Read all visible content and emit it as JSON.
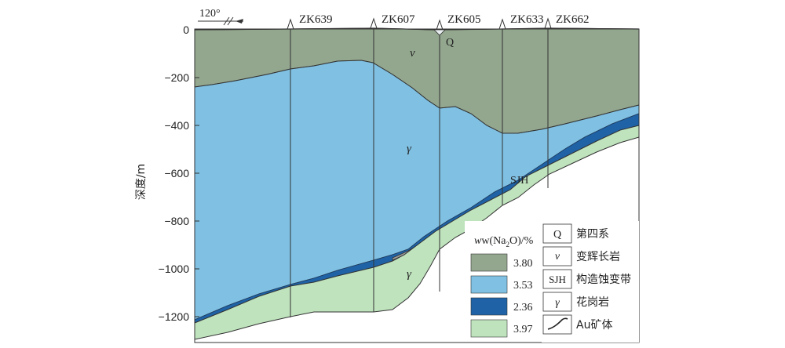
{
  "header": {
    "azimuth": "120°"
  },
  "axis": {
    "ylabel": "深度/m",
    "ticks": [
      "0",
      "−200",
      "−400",
      "−600",
      "−800",
      "−1000",
      "−1200"
    ]
  },
  "drillholes": [
    "ZK639",
    "ZK607",
    "ZK605",
    "ZK633",
    "ZK662"
  ],
  "unit_labels": {
    "quaternary": "Q",
    "metadiorite": "v",
    "granite_upper": "γ",
    "granite_lower": "γ",
    "fault_zone": "SJH"
  },
  "na2o_legend": {
    "title_main": "w(Na",
    "title_sub": "2",
    "title_end": "O)/%",
    "items": [
      {
        "value": "3.80",
        "color": "#93a68e"
      },
      {
        "value": "3.53",
        "color": "#7fc0e3"
      },
      {
        "value": "2.36",
        "color": "#1f63a6"
      },
      {
        "value": "3.97",
        "color": "#bfe3bd"
      }
    ]
  },
  "lithology_legend": {
    "items": [
      {
        "symbol": "Q",
        "label": "第四系"
      },
      {
        "symbol": "v",
        "label": "变辉长岩"
      },
      {
        "symbol": "SJH",
        "label": "构造蚀变带"
      },
      {
        "symbol": "γ",
        "label": "花岗岩"
      },
      {
        "symbol": "",
        "label": "Au矿体"
      }
    ]
  },
  "colors": {
    "metadiorite": "#93a68e",
    "granite": "#7fc0e3",
    "alteration": "#1f63a6",
    "lower_granite": "#bfe3bd",
    "ore": "#9a9a9a"
  }
}
